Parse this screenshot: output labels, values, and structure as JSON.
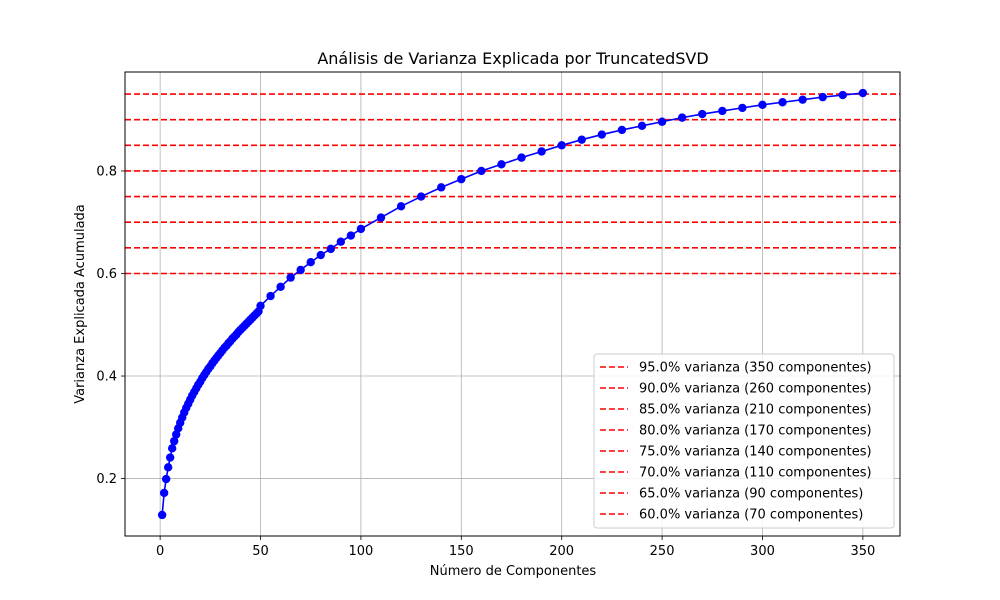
{
  "chart_data": {
    "type": "line",
    "title": "Análisis de Varianza Explicada por TruncatedSVD",
    "xlabel": "Número de Componentes",
    "ylabel": "Varianza Explicada Acumulada",
    "xlim": [
      -17.5,
      368.5
    ],
    "ylim": [
      0.088,
      0.993
    ],
    "xticks": [
      0,
      50,
      100,
      150,
      200,
      250,
      300,
      350
    ],
    "yticks": [
      0.2,
      0.4,
      0.6,
      0.8
    ],
    "xtick_labels": [
      "0",
      "50",
      "100",
      "150",
      "200",
      "250",
      "300",
      "350"
    ],
    "ytick_labels": [
      "0.2",
      "0.4",
      "0.6",
      "0.8"
    ],
    "grid": true,
    "legend_position": "lower-right",
    "series": [
      {
        "color": "#0000ff",
        "marker": "circle",
        "x": [
          1,
          2,
          3,
          4,
          5,
          6,
          7,
          8,
          9,
          10,
          11,
          12,
          13,
          14,
          15,
          16,
          17,
          18,
          19,
          20,
          21,
          22,
          23,
          24,
          25,
          26,
          27,
          28,
          29,
          30,
          31,
          32,
          33,
          34,
          35,
          36,
          37,
          38,
          39,
          40,
          41,
          42,
          43,
          44,
          45,
          46,
          47,
          48,
          49,
          50,
          55,
          60,
          65,
          70,
          75,
          80,
          85,
          90,
          95,
          100,
          110,
          120,
          130,
          140,
          150,
          160,
          170,
          180,
          190,
          200,
          210,
          220,
          230,
          240,
          250,
          260,
          270,
          280,
          290,
          300,
          310,
          320,
          330,
          340,
          350
        ],
        "values": [
          0.129,
          0.172,
          0.199,
          0.222,
          0.241,
          0.259,
          0.273,
          0.286,
          0.298,
          0.309,
          0.319,
          0.329,
          0.338,
          0.346,
          0.354,
          0.362,
          0.369,
          0.376,
          0.383,
          0.389,
          0.396,
          0.402,
          0.408,
          0.414,
          0.419,
          0.425,
          0.43,
          0.435,
          0.44,
          0.445,
          0.45,
          0.455,
          0.459,
          0.464,
          0.468,
          0.473,
          0.477,
          0.481,
          0.486,
          0.49,
          0.494,
          0.498,
          0.502,
          0.506,
          0.51,
          0.514,
          0.518,
          0.522,
          0.526,
          0.537,
          0.556,
          0.574,
          0.592,
          0.607,
          0.622,
          0.636,
          0.648,
          0.662,
          0.674,
          0.687,
          0.709,
          0.731,
          0.75,
          0.768,
          0.784,
          0.8,
          0.813,
          0.826,
          0.838,
          0.85,
          0.861,
          0.871,
          0.88,
          0.888,
          0.896,
          0.904,
          0.911,
          0.917,
          0.923,
          0.929,
          0.934,
          0.939,
          0.944,
          0.948,
          0.952
        ]
      }
    ],
    "thresholds": [
      {
        "y": 0.95,
        "color": "#ff0000",
        "style": "dashed",
        "label": "95.0% varianza (350 componentes)"
      },
      {
        "y": 0.9,
        "color": "#ff0000",
        "style": "dashed",
        "label": "90.0% varianza (260 componentes)"
      },
      {
        "y": 0.85,
        "color": "#ff0000",
        "style": "dashed",
        "label": "85.0% varianza (210 componentes)"
      },
      {
        "y": 0.8,
        "color": "#ff0000",
        "style": "dashed",
        "label": "80.0% varianza (170 componentes)"
      },
      {
        "y": 0.75,
        "color": "#ff0000",
        "style": "dashed",
        "label": "75.0% varianza (140 componentes)"
      },
      {
        "y": 0.7,
        "color": "#ff0000",
        "style": "dashed",
        "label": "70.0% varianza (110 componentes)"
      },
      {
        "y": 0.65,
        "color": "#ff0000",
        "style": "dashed",
        "label": "65.0% varianza (90 componentes)"
      },
      {
        "y": 0.6,
        "color": "#ff0000",
        "style": "dashed",
        "label": "60.0% varianza (70 componentes)"
      }
    ]
  }
}
